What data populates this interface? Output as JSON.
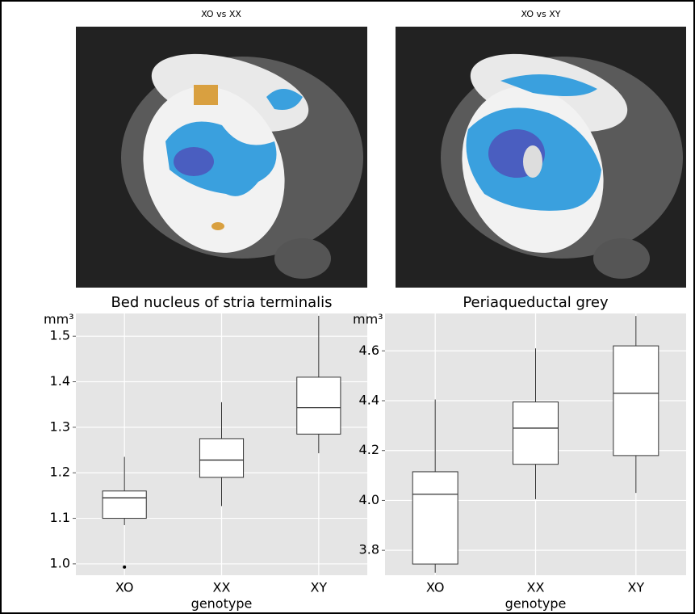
{
  "images": [
    {
      "title": "XO vs XX"
    },
    {
      "title": "XO vs XY"
    }
  ],
  "chart_data": [
    {
      "type": "box",
      "title": "Bed nucleus of stria terminalis",
      "y_label": "mm³",
      "x_label": "genotype",
      "categories": [
        "XO",
        "XX",
        "XY"
      ],
      "boxes": [
        {
          "min": 1.085,
          "q1": 1.1,
          "median": 1.145,
          "q3": 1.16,
          "max": 1.235,
          "outliers": [
            0.993
          ]
        },
        {
          "min": 1.127,
          "q1": 1.19,
          "median": 1.228,
          "q3": 1.275,
          "max": 1.355
        },
        {
          "min": 1.243,
          "q1": 1.285,
          "median": 1.343,
          "q3": 1.41,
          "max": 1.545
        }
      ],
      "ylim": [
        0.975,
        1.55
      ],
      "yticks": [
        {
          "value": 1,
          "label": "1.0"
        },
        1.1,
        1.2,
        1.3,
        1.4,
        1.5
      ],
      "grid": true
    },
    {
      "type": "box",
      "title": "Periaqueductal grey",
      "y_label": "mm³",
      "x_label": "genotype",
      "categories": [
        "XO",
        "XX",
        "XY"
      ],
      "boxes": [
        {
          "min": 3.71,
          "q1": 3.745,
          "median": 4.025,
          "q3": 4.115,
          "max": 4.405
        },
        {
          "min": 4.005,
          "q1": 4.145,
          "median": 4.29,
          "q3": 4.395,
          "max": 4.61
        },
        {
          "min": 4.03,
          "q1": 4.18,
          "median": 4.43,
          "q3": 4.62,
          "max": 4.74
        }
      ],
      "ylim": [
        3.7,
        4.75
      ],
      "yticks": [
        3.8,
        {
          "value": 4,
          "label": "4.0"
        },
        4.2,
        4.4,
        4.6
      ],
      "grid": true
    }
  ]
}
